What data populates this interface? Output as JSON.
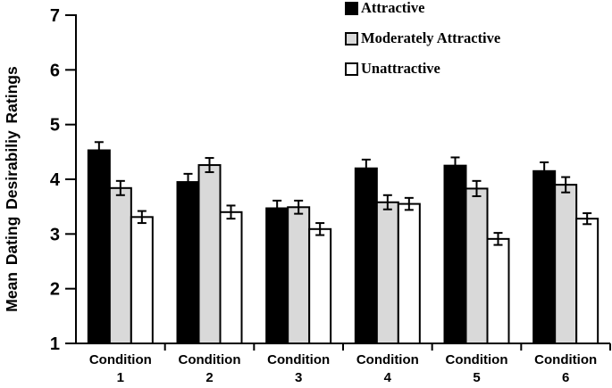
{
  "chart_data": {
    "type": "bar",
    "title": "",
    "xlabel": "",
    "ylabel": "Mean Dating Desirabiliy Ratings",
    "ylim": [
      1,
      7
    ],
    "yticks": [
      1,
      2,
      3,
      4,
      5,
      6,
      7
    ],
    "grid": false,
    "legend_position": "top-right",
    "categories": [
      "Condition 1",
      "Condition 2",
      "Condition 3",
      "Condition 4",
      "Condition 5",
      "Condition 6"
    ],
    "series": [
      {
        "name": "Attractive",
        "fill": "#000000",
        "values": [
          4.53,
          3.95,
          3.47,
          4.2,
          4.25,
          4.15
        ],
        "errors": [
          0.15,
          0.15,
          0.14,
          0.16,
          0.15,
          0.16
        ]
      },
      {
        "name": "Moderately Attractive",
        "fill": "#d9d9d9",
        "values": [
          3.84,
          4.26,
          3.49,
          3.58,
          3.83,
          3.9
        ],
        "errors": [
          0.13,
          0.13,
          0.12,
          0.13,
          0.14,
          0.14
        ]
      },
      {
        "name": "Unattractive",
        "fill": "#ffffff",
        "values": [
          3.31,
          3.4,
          3.09,
          3.55,
          2.91,
          3.28
        ],
        "errors": [
          0.11,
          0.12,
          0.11,
          0.11,
          0.11,
          0.1
        ]
      }
    ]
  }
}
